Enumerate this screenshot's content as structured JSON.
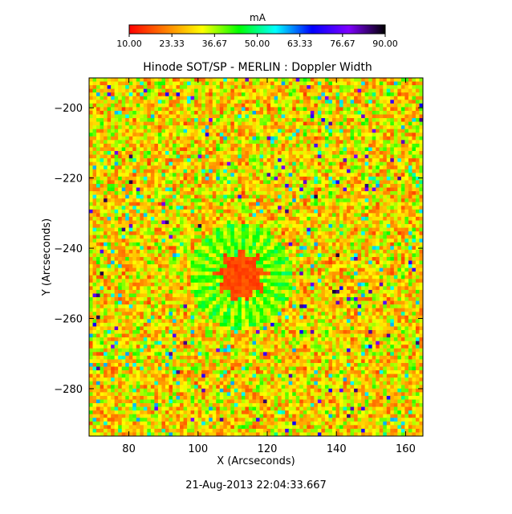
{
  "chart_data": {
    "type": "heatmap",
    "title": "Hinode SOT/SP - MERLIN : Doppler Width",
    "xlabel": "X (Arcseconds)",
    "ylabel": "Y (Arcseconds)",
    "timestamp": "21-Aug-2013 22:04:33.667",
    "xlim": [
      68.5,
      165
    ],
    "ylim": [
      -293.5,
      -191.5
    ],
    "x_ticks": [
      {
        "value": 80,
        "label": "80"
      },
      {
        "value": 100,
        "label": "100"
      },
      {
        "value": 120,
        "label": "120"
      },
      {
        "value": 140,
        "label": "140"
      },
      {
        "value": 160,
        "label": "160"
      }
    ],
    "y_ticks": [
      {
        "value": -200,
        "label": "−200"
      },
      {
        "value": -220,
        "label": "−220"
      },
      {
        "value": -240,
        "label": "−240"
      },
      {
        "value": -260,
        "label": "−260"
      },
      {
        "value": -280,
        "label": "−280"
      }
    ],
    "colorbar": {
      "unit": "mA",
      "range": [
        10,
        90
      ],
      "ticks": [
        "10.00",
        "23.33",
        "36.67",
        "50.00",
        "63.33",
        "76.67",
        "90.00"
      ],
      "colors": [
        "#ff0000",
        "#ff7f00",
        "#ffff00",
        "#00ff00",
        "#00ffff",
        "#0000ff",
        "#7f00ff",
        "#000000"
      ]
    },
    "field_pattern": {
      "spot_center": [
        112.5,
        -248
      ],
      "umbra_radius": 6.5,
      "penumbra_radius": 15,
      "umbra_value": 14,
      "penumbra_value": 40,
      "quiet_sun_mean": 30,
      "grid_cols": 92,
      "grid_rows": 98
    }
  }
}
